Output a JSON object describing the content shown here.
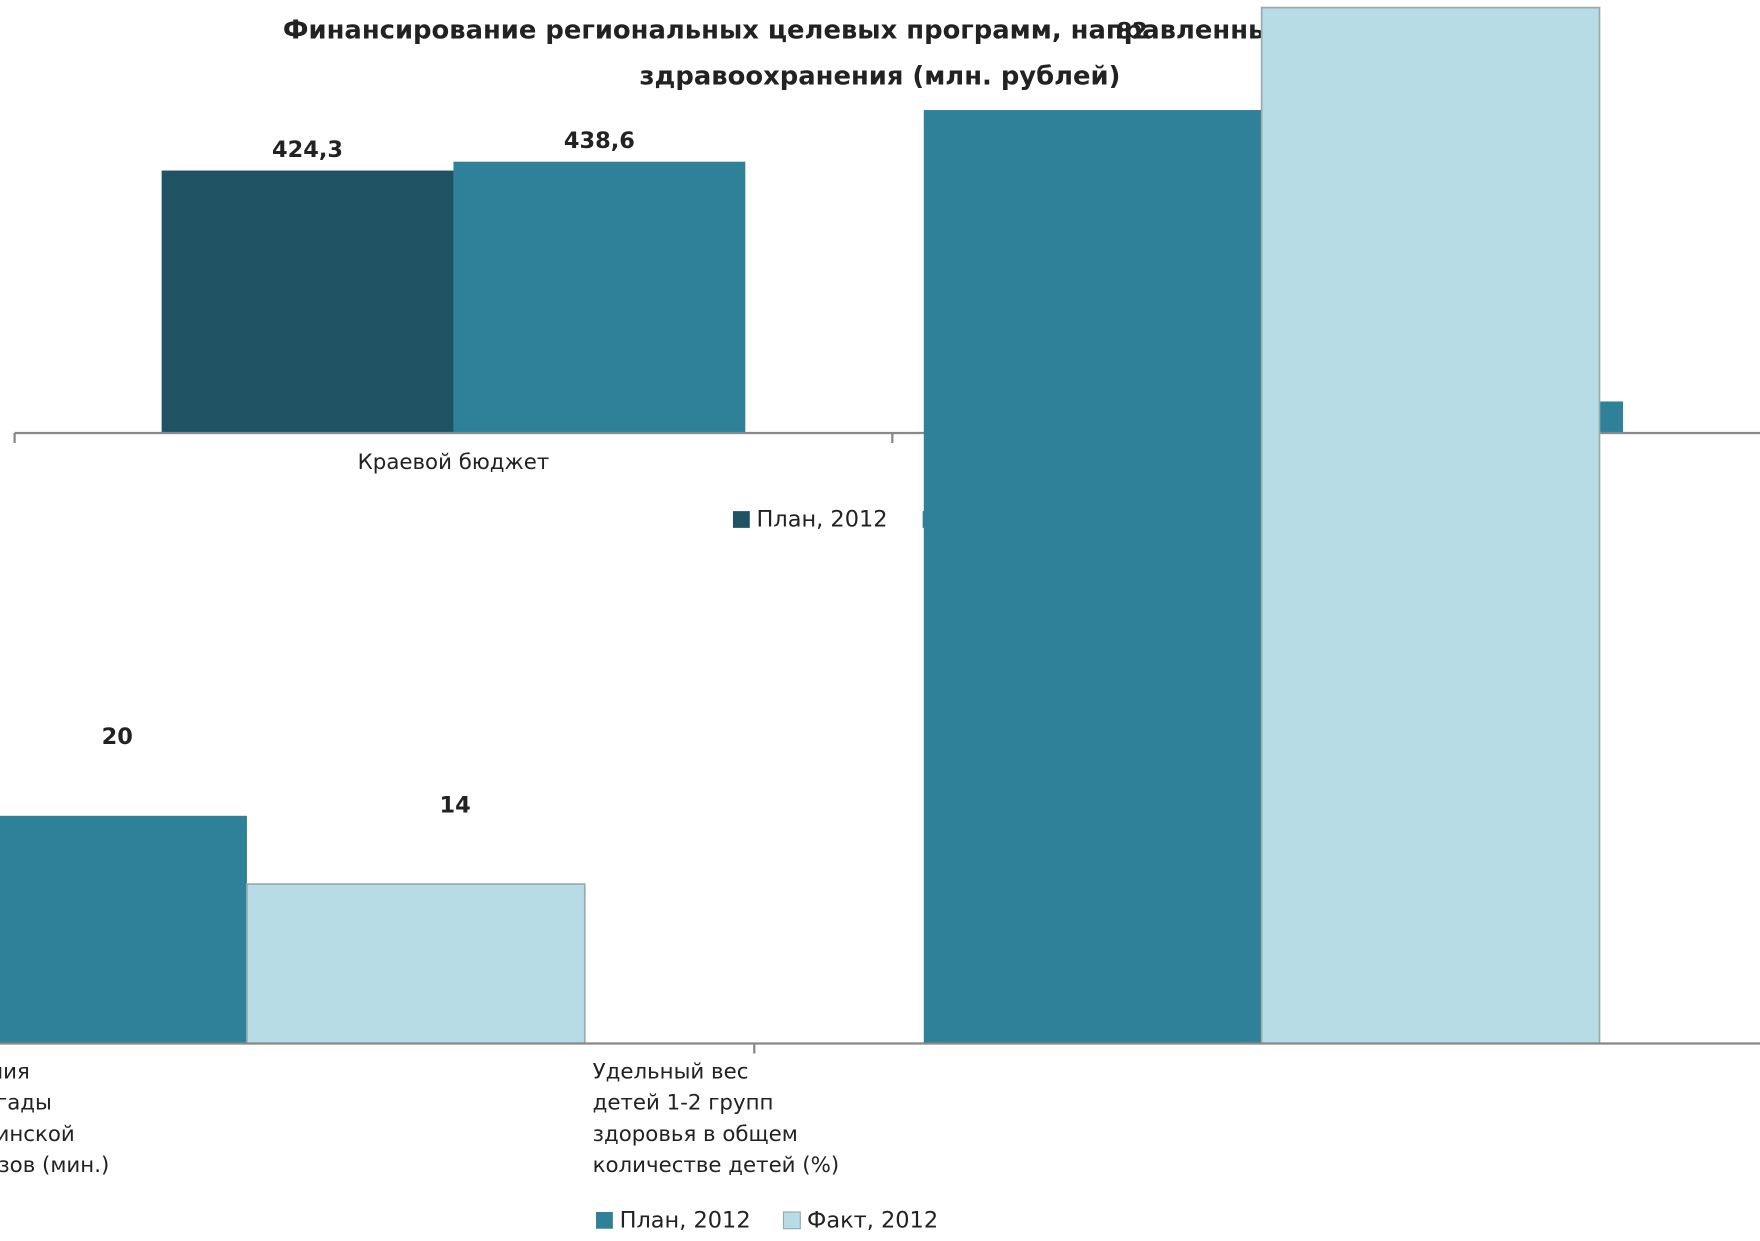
{
  "chart_data": [
    {
      "type": "bar",
      "title": [
        "Финансирование региональных целевых программ, направленных на развитие",
        "здравоохранения (млн. рублей)"
      ],
      "categories": [
        [
          "Краевой бюджет"
        ],
        [
          null
        ]
      ],
      "series": [
        {
          "name": "План, 2012",
          "color": "#1f5263",
          "values": [
            424.3,
            null
          ],
          "value_labels": [
            "424,3",
            null
          ]
        },
        {
          "name": "Факт, 2012",
          "color": "#2e8199",
          "values": [
            438.6,
            51
          ],
          "value_labels": [
            "438,6",
            null
          ]
        }
      ],
      "ylim": [
        0,
        700
      ]
    },
    {
      "type": "bar",
      "categories": [
        [
          "Время ожидания",
          "прибытия бригады",
          "скорой медицинской",
          "помощи на вызов (мин.)"
        ],
        [
          "Удельный вес",
          "детей 1-2 групп",
          "здоровья в общем",
          "количестве детей (%)"
        ]
      ],
      "series": [
        {
          "name": "План, 2012",
          "color": "#2e8199",
          "values": [
            20,
            82
          ]
        },
        {
          "name": "Факт, 2012",
          "color": "#b8dce6",
          "values": [
            14,
            91
          ]
        }
      ],
      "ylim": [
        0,
        100
      ]
    }
  ]
}
